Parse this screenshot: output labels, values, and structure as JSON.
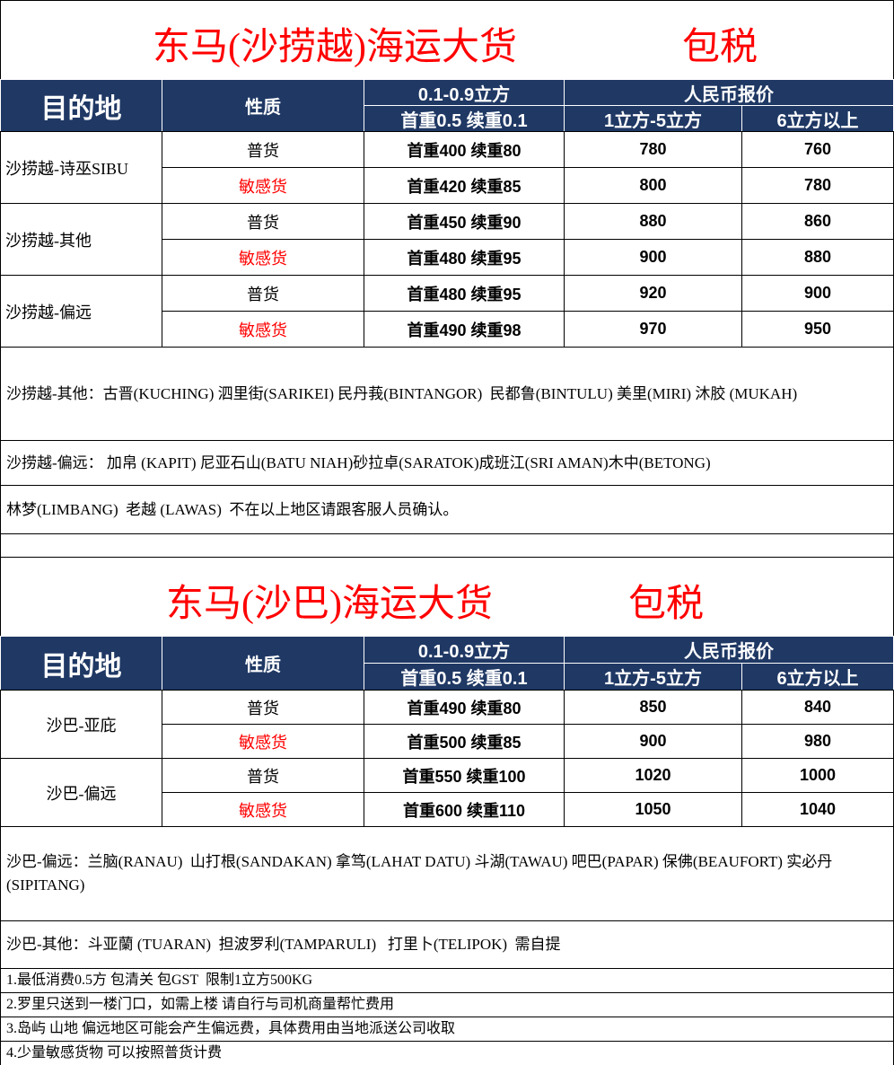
{
  "sections": [
    {
      "title": "东马(沙捞越)海运大货",
      "title_tag": "包税",
      "header": {
        "destination": "目的地",
        "nature": "性质",
        "volume_range": "0.1-0.9立方",
        "volume_weight": "首重0.5 续重0.1",
        "rmb_quote": "人民币报价",
        "tier1": "1立方-5立方",
        "tier2": "6立方以上"
      },
      "rows": [
        {
          "destination": "沙捞越-诗巫SIBU",
          "items": [
            {
              "nature": "普货",
              "weight": "首重400  续重80",
              "tier1": 780,
              "tier2": 760
            },
            {
              "nature": "敏感货",
              "weight": "首重420  续重85",
              "tier1": 800,
              "tier2": 780
            }
          ]
        },
        {
          "destination": "沙捞越-其他",
          "items": [
            {
              "nature": "普货",
              "weight": "首重450  续重90",
              "tier1": 880,
              "tier2": 860
            },
            {
              "nature": "敏感货",
              "weight": "首重480  续重95",
              "tier1": 900,
              "tier2": 880
            }
          ]
        },
        {
          "destination": "沙捞越-偏远",
          "items": [
            {
              "nature": "普货",
              "weight": "首重480  续重95",
              "tier1": 920,
              "tier2": 900
            },
            {
              "nature": "敏感货",
              "weight": "首重490  续重98",
              "tier1": 970,
              "tier2": 950
            }
          ]
        }
      ],
      "notes": [
        "沙捞越-其他：古晋(KUCHING) 泗里街(SARIKEI) 民丹莪(BINTANGOR)  民都鲁(BINTULU) 美里(MIRI) 沐胶 (MUKAH)",
        "沙捞越-偏远： 加帛 (KAPIT) 尼亚石山(BATU NIAH)砂拉卓(SARATOK)成班江(SRI AMAN)木中(BETONG)",
        "林梦(LIMBANG)  老越 (LAWAS)  不在以上地区请跟客服人员确认。"
      ]
    },
    {
      "title": "东马(沙巴)海运大货",
      "title_tag": "包税",
      "header": {
        "destination": "目的地",
        "nature": "性质",
        "volume_range": "0.1-0.9立方",
        "volume_weight": "首重0.5 续重0.1",
        "rmb_quote": "人民币报价",
        "tier1": "1立方-5立方",
        "tier2": "6立方以上"
      },
      "rows": [
        {
          "destination": "沙巴-亚庇",
          "items": [
            {
              "nature": "普货",
              "weight": "首重490  续重80",
              "tier1": 850,
              "tier2": 840
            },
            {
              "nature": "敏感货",
              "weight": "首重500  续重85",
              "tier1": 900,
              "tier2": 980
            }
          ]
        },
        {
          "destination": "沙巴-偏远",
          "items": [
            {
              "nature": "普货",
              "weight": "首重550  续重100",
              "tier1": 1020,
              "tier2": 1000
            },
            {
              "nature": "敏感货",
              "weight": "首重600  续重110",
              "tier1": 1050,
              "tier2": 1040
            }
          ]
        }
      ],
      "notes": [
        "沙巴-偏远：兰脑(RANAU)  山打根(SANDAKAN) 拿笃(LAHAT DATU) 斗湖(TAWAU) 吧巴(PAPAR) 保佛(BEAUFORT) 实必丹(SIPITANG)",
        "沙巴-其他：斗亚蘭 (TUARAN)  担波罗利(TAMPARULI)   打里卜(TELIPOK)  需自提"
      ]
    }
  ],
  "footnotes": [
    "1.最低消费0.5方 包清关 包GST  限制1立方500KG",
    "2.罗里只送到一楼门口，如需上楼 请自行与司机商量帮忙费用",
    "3.岛屿 山地 偏远地区可能会产生偏远费，具体费用由当地派送公司收取",
    "4.少量敏感货物 可以按照普货计费"
  ]
}
